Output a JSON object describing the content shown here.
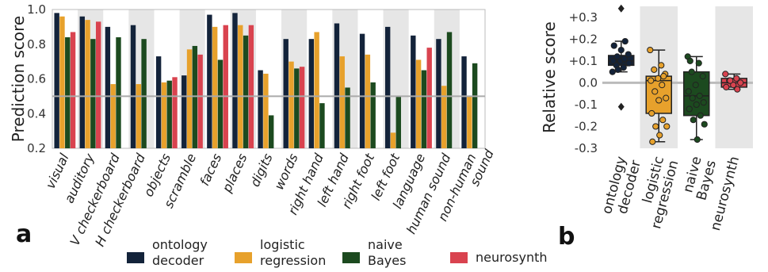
{
  "colors": {
    "ontology_decoder": "#13233a",
    "logistic_regression": "#e7a12c",
    "naive_bayes": "#1c4a1f",
    "neurosynth": "#d9434f",
    "band": "#e6e6e6",
    "refline": "#aaaaaa"
  },
  "chart_data": [
    {
      "panel": "a",
      "type": "bar",
      "ylabel": "Prediction score",
      "ylim": [
        0.2,
        1.0
      ],
      "yticks": [
        "0.2",
        "0.4",
        "0.6",
        "0.8",
        "1.0"
      ],
      "reference_line": 0.5,
      "categories": [
        "visual",
        "auditory",
        "V checkerboard",
        "H checkerboard",
        "objects",
        "scramble",
        "faces",
        "places",
        "digits",
        "words",
        "right hand",
        "left hand",
        "right foot",
        "left foot",
        "language",
        "human sound",
        "non-human sound"
      ],
      "series": [
        {
          "name": "ontology decoder",
          "color_key": "ontology_decoder",
          "values": [
            0.98,
            0.96,
            0.9,
            0.91,
            0.73,
            0.62,
            0.97,
            0.98,
            0.65,
            0.83,
            0.83,
            0.92,
            0.86,
            0.9,
            0.85,
            0.83,
            0.73
          ]
        },
        {
          "name": "logistic regression",
          "color_key": "logistic_regression",
          "values": [
            0.96,
            0.94,
            0.57,
            0.57,
            0.58,
            0.77,
            0.9,
            0.91,
            0.63,
            0.7,
            0.87,
            0.73,
            0.74,
            0.29,
            0.71,
            0.56,
            0.5
          ]
        },
        {
          "name": "naive Bayes",
          "color_key": "naive_bayes",
          "values": [
            0.84,
            0.83,
            0.84,
            0.83,
            0.59,
            0.79,
            0.71,
            0.85,
            0.39,
            0.66,
            0.46,
            0.55,
            0.58,
            0.5,
            0.65,
            0.87,
            0.69
          ]
        },
        {
          "name": "neurosynth",
          "color_key": "neurosynth",
          "values": [
            0.87,
            0.93,
            null,
            null,
            0.61,
            0.74,
            0.91,
            0.91,
            null,
            0.67,
            null,
            null,
            null,
            null,
            0.78,
            null,
            null
          ]
        }
      ]
    },
    {
      "panel": "b",
      "type": "box",
      "ylabel": "Relative score",
      "ylim": [
        -0.3,
        0.35
      ],
      "yticks": [
        "+0.3",
        "+0.2",
        "+0.1",
        "0.0",
        "-0.1",
        "-0.2",
        "-0.3"
      ],
      "categories": [
        "ontology decoder",
        "logistic regression",
        "naive Bayes",
        "neurosynth"
      ],
      "boxes": [
        {
          "name": "ontology decoder",
          "color_key": "ontology_decoder",
          "whisker_low": 0.05,
          "q1": 0.08,
          "median": 0.1,
          "q3": 0.125,
          "whisker_high": 0.19,
          "outliers": [
            0.34,
            -0.11
          ],
          "points": [
            0.05,
            0.07,
            0.08,
            0.09,
            0.1,
            0.1,
            0.11,
            0.12,
            0.13,
            0.15,
            0.17,
            0.19,
            0.06,
            0.09
          ]
        },
        {
          "name": "logistic regression",
          "color_key": "logistic_regression",
          "whisker_low": -0.27,
          "q1": -0.14,
          "median": 0.01,
          "q3": 0.03,
          "whisker_high": 0.15,
          "outliers": [],
          "points": [
            0.15,
            0.08,
            0.06,
            0.04,
            0.02,
            0.01,
            -0.01,
            -0.04,
            -0.07,
            -0.08,
            -0.14,
            -0.17,
            -0.2,
            -0.2,
            -0.24,
            -0.27,
            0.03
          ]
        },
        {
          "name": "naive Bayes",
          "color_key": "naive_bayes",
          "whisker_low": -0.26,
          "q1": -0.15,
          "median": -0.06,
          "q3": 0.05,
          "whisker_high": 0.12,
          "outliers": [],
          "points": [
            0.12,
            0.09,
            0.05,
            0.03,
            -0.01,
            -0.04,
            -0.06,
            -0.07,
            -0.09,
            -0.1,
            -0.12,
            -0.15,
            -0.17,
            -0.19,
            -0.26,
            0.1
          ]
        },
        {
          "name": "neurosynth",
          "color_key": "neurosynth",
          "whisker_low": -0.03,
          "q1": -0.02,
          "median": 0.0,
          "q3": 0.02,
          "whisker_high": 0.04,
          "outliers": [],
          "points": [
            0.04,
            0.02,
            0.01,
            0.0,
            -0.01,
            -0.02,
            -0.03,
            0.01
          ]
        }
      ]
    }
  ],
  "legend": [
    {
      "key": "ontology_decoder",
      "line1": "ontology",
      "line2": "decoder"
    },
    {
      "key": "logistic_regression",
      "line1": "logistic",
      "line2": "regression"
    },
    {
      "key": "naive_bayes",
      "line1": "naive",
      "line2": "Bayes"
    },
    {
      "key": "neurosynth",
      "line1": "neurosynth",
      "line2": ""
    }
  ],
  "panel_labels": {
    "a": "a",
    "b": "b"
  },
  "b_category_lines": [
    [
      "ontology",
      "decoder"
    ],
    [
      "logistic",
      "regression"
    ],
    [
      "naive",
      "Bayes"
    ],
    [
      "neurosynth"
    ]
  ],
  "a_category_lines": [
    [
      "visual"
    ],
    [
      "auditory"
    ],
    [
      "V checkerboard"
    ],
    [
      "H checkerboard"
    ],
    [
      "objects"
    ],
    [
      "scramble"
    ],
    [
      "faces"
    ],
    [
      "places"
    ],
    [
      "digits"
    ],
    [
      "words"
    ],
    [
      "right hand"
    ],
    [
      "left hand"
    ],
    [
      "right foot"
    ],
    [
      "left foot"
    ],
    [
      "language"
    ],
    [
      "human sound"
    ],
    [
      "non-human",
      "sound"
    ]
  ]
}
